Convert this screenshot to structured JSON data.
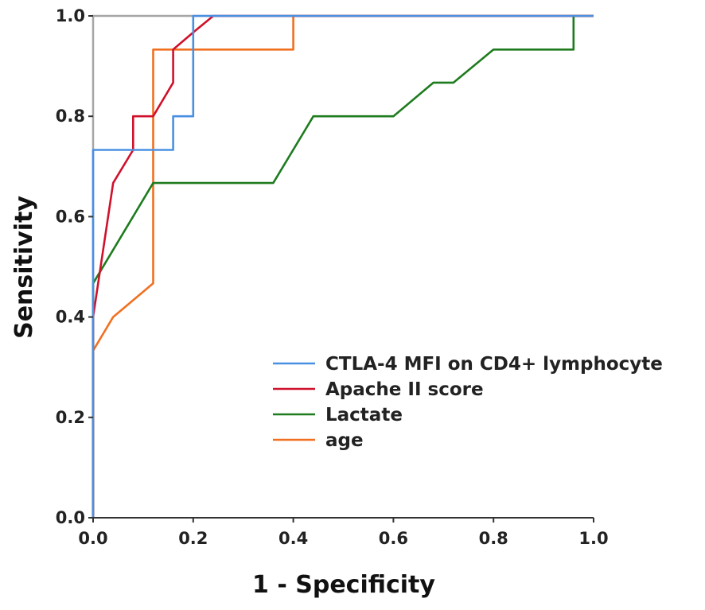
{
  "chart_data": {
    "type": "line",
    "title": "",
    "xlabel": "1 - Specificity",
    "ylabel": "Sensitivity",
    "xlim": [
      0,
      1
    ],
    "ylim": [
      0,
      1
    ],
    "x_ticks": [
      "0.0",
      "0.2",
      "0.4",
      "0.6",
      "0.8",
      "1.0"
    ],
    "y_ticks": [
      "0.0",
      "0.2",
      "0.4",
      "0.6",
      "0.8",
      "1.0"
    ],
    "grid": false,
    "legend_position": "lower-right",
    "reference_line": {
      "x": [
        0,
        0,
        1
      ],
      "y": [
        0,
        1,
        1
      ],
      "color": "#a6a6a6"
    },
    "series": [
      {
        "name": "CTLA-4 MFI on CD4+ lymphocyte",
        "color": "#4a90e2",
        "x": [
          0,
          0,
          0.16,
          0.16,
          0.2,
          0.2,
          1
        ],
        "y": [
          0,
          0.733,
          0.733,
          0.8,
          0.8,
          1,
          1
        ]
      },
      {
        "name": "Apache II score",
        "color": "#d0112b",
        "x": [
          0,
          0,
          0.04,
          0.08,
          0.08,
          0.12,
          0.16,
          0.16,
          0.2,
          0.24,
          1
        ],
        "y": [
          0,
          0.4,
          0.667,
          0.733,
          0.8,
          0.8,
          0.867,
          0.933,
          0.967,
          1,
          1
        ]
      },
      {
        "name": "Lactate",
        "color": "#1e7b1e",
        "x": [
          0,
          0,
          0,
          0.12,
          0.36,
          0.44,
          0.6,
          0.68,
          0.72,
          0.8,
          0.96,
          0.96,
          1
        ],
        "y": [
          0,
          0.4,
          0.467,
          0.667,
          0.667,
          0.8,
          0.8,
          0.867,
          0.867,
          0.933,
          0.933,
          1,
          1
        ]
      },
      {
        "name": "age",
        "color": "#f07020",
        "x": [
          0,
          0,
          0.04,
          0.12,
          0.12,
          0.4,
          0.4,
          1
        ],
        "y": [
          0,
          0.333,
          0.4,
          0.467,
          0.933,
          0.933,
          1,
          1
        ]
      }
    ]
  }
}
